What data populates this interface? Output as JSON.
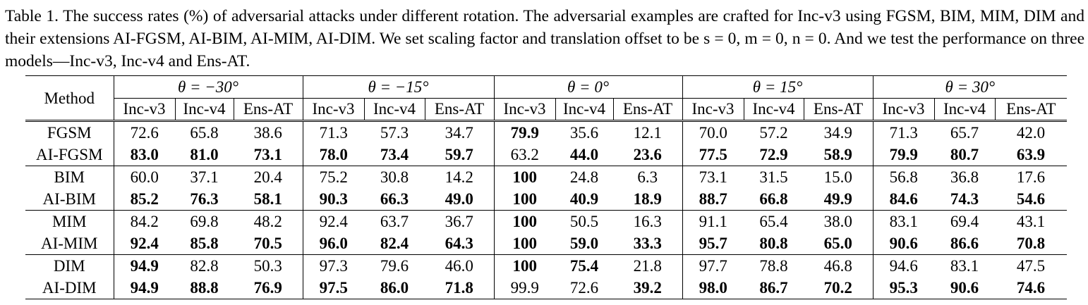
{
  "caption": "Table 1. The success rates (%) of adversarial attacks under different rotation.  The adversarial examples are crafted for Inc-v3 using FGSM, BIM, MIM, DIM and their extensions AI-FGSM, AI-BIM, AI-MIM, AI-DIM. We set scaling factor and translation offset to be s = 0, m = 0, n = 0. And we test the performance on three models—Inc-v3, Inc-v4 and Ens-AT.",
  "table": {
    "method_header": "Method",
    "angle_headers": [
      "θ = −30°",
      "θ = −15°",
      "θ = 0°",
      "θ = 15°",
      "θ = 30°"
    ],
    "model_headers": [
      "Inc-v3",
      "Inc-v4",
      "Ens-AT"
    ],
    "rows": [
      {
        "method": "FGSM",
        "values": [
          "72.6",
          "65.8",
          "38.6",
          "71.3",
          "57.3",
          "34.7",
          "79.9",
          "35.6",
          "12.1",
          "70.0",
          "57.2",
          "34.9",
          "71.3",
          "65.7",
          "42.0"
        ],
        "bold": [
          6
        ]
      },
      {
        "method": "AI-FGSM",
        "values": [
          "83.0",
          "81.0",
          "73.1",
          "78.0",
          "73.4",
          "59.7",
          "63.2",
          "44.0",
          "23.6",
          "77.5",
          "72.9",
          "58.9",
          "79.9",
          "80.7",
          "63.9"
        ],
        "bold": [
          0,
          1,
          2,
          3,
          4,
          5,
          7,
          8,
          9,
          10,
          11,
          12,
          13,
          14
        ]
      },
      {
        "method": "BIM",
        "values": [
          "60.0",
          "37.1",
          "20.4",
          "75.2",
          "30.8",
          "14.2",
          "100",
          "24.8",
          "6.3",
          "73.1",
          "31.5",
          "15.0",
          "56.8",
          "36.8",
          "17.6"
        ],
        "bold": [
          6
        ]
      },
      {
        "method": "AI-BIM",
        "values": [
          "85.2",
          "76.3",
          "58.1",
          "90.3",
          "66.3",
          "49.0",
          "100",
          "40.9",
          "18.9",
          "88.7",
          "66.8",
          "49.9",
          "84.6",
          "74.3",
          "54.6"
        ],
        "bold": [
          0,
          1,
          2,
          3,
          4,
          5,
          6,
          7,
          8,
          9,
          10,
          11,
          12,
          13,
          14
        ]
      },
      {
        "method": "MIM",
        "values": [
          "84.2",
          "69.8",
          "48.2",
          "92.4",
          "63.7",
          "36.7",
          "100",
          "50.5",
          "16.3",
          "91.1",
          "65.4",
          "38.0",
          "83.1",
          "69.4",
          "43.1"
        ],
        "bold": [
          6
        ]
      },
      {
        "method": "AI-MIM",
        "values": [
          "92.4",
          "85.8",
          "70.5",
          "96.0",
          "82.4",
          "64.3",
          "100",
          "59.0",
          "33.3",
          "95.7",
          "80.8",
          "65.0",
          "90.6",
          "86.6",
          "70.8"
        ],
        "bold": [
          0,
          1,
          2,
          3,
          4,
          5,
          6,
          7,
          8,
          9,
          10,
          11,
          12,
          13,
          14
        ]
      },
      {
        "method": "DIM",
        "values": [
          "94.9",
          "82.8",
          "50.3",
          "97.3",
          "79.6",
          "46.0",
          "100",
          "75.4",
          "21.8",
          "97.7",
          "78.8",
          "46.8",
          "94.6",
          "83.1",
          "47.5"
        ],
        "bold": [
          0,
          6,
          7
        ]
      },
      {
        "method": "AI-DIM",
        "values": [
          "94.9",
          "88.8",
          "76.9",
          "97.5",
          "86.0",
          "71.8",
          "99.9",
          "72.6",
          "39.2",
          "98.0",
          "86.7",
          "70.2",
          "95.3",
          "90.6",
          "74.6"
        ],
        "bold": [
          0,
          1,
          2,
          3,
          4,
          5,
          8,
          9,
          10,
          11,
          12,
          13,
          14
        ]
      }
    ]
  }
}
